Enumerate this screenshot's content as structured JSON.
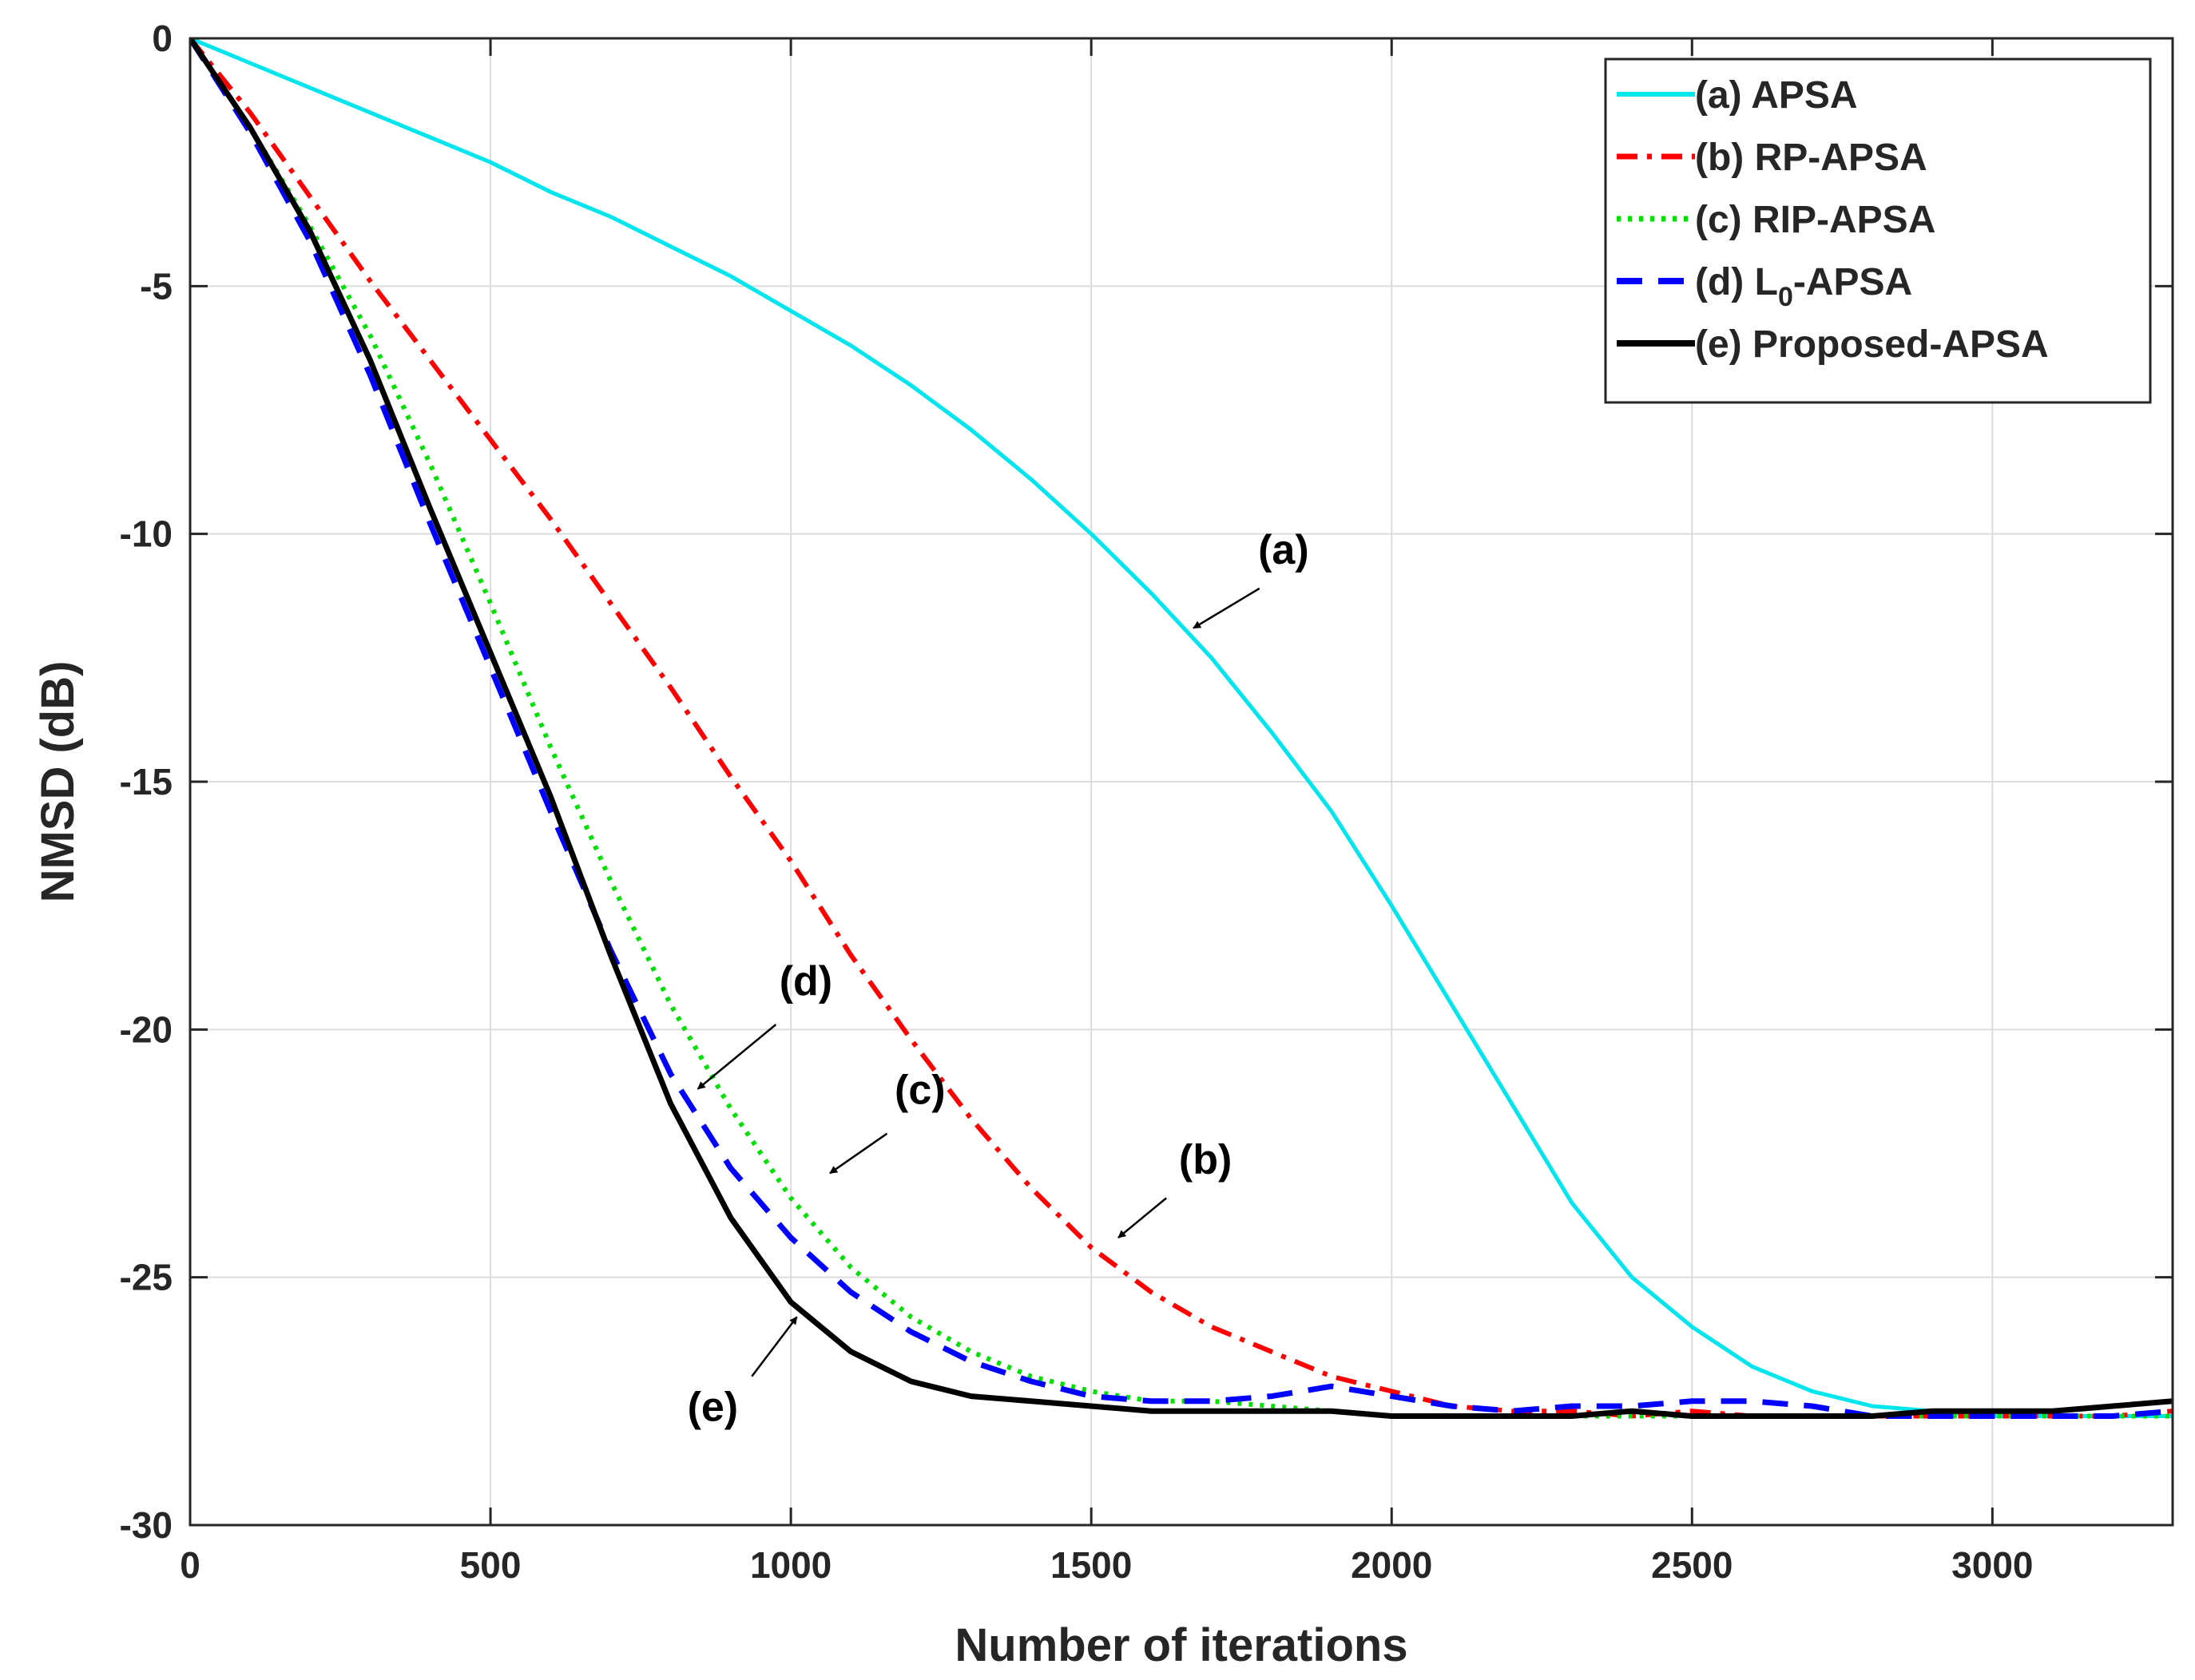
{
  "chart_data": {
    "type": "line",
    "title": "",
    "xlabel": "Number of iterations",
    "ylabel": "NMSD (dB)",
    "xlim": [
      0,
      3300
    ],
    "ylim": [
      -30,
      0
    ],
    "xticks": [
      0,
      500,
      1000,
      1500,
      2000,
      2500,
      3000
    ],
    "xtick_labels": [
      "0",
      "500",
      "1000",
      "1500",
      "2000",
      "2500",
      "3000"
    ],
    "yticks": [
      0,
      -5,
      -10,
      -15,
      -20,
      -25,
      -30
    ],
    "ytick_labels": [
      "0",
      "-5",
      "-10",
      "-15",
      "-20",
      "-25",
      "-30"
    ],
    "grid": true,
    "legend_position": "top-right",
    "series": [
      {
        "name": "(a) APSA",
        "legend_main": "(a) APSA",
        "legend_sub": "",
        "legend_suffix": "",
        "color": "#00E5EE",
        "style": "solid",
        "x": [
          0,
          100,
          200,
          300,
          400,
          500,
          600,
          700,
          800,
          900,
          1000,
          1100,
          1200,
          1300,
          1400,
          1500,
          1600,
          1700,
          1800,
          1900,
          2000,
          2100,
          2200,
          2300,
          2400,
          2500,
          2600,
          2700,
          2800,
          2900,
          3000,
          3100,
          3200,
          3300
        ],
        "y": [
          0,
          -0.5,
          -1.0,
          -1.5,
          -2.0,
          -2.5,
          -3.1,
          -3.6,
          -4.2,
          -4.8,
          -5.5,
          -6.2,
          -7.0,
          -7.9,
          -8.9,
          -10.0,
          -11.2,
          -12.5,
          -14.0,
          -15.6,
          -17.5,
          -19.5,
          -21.5,
          -23.5,
          -25.0,
          -26.0,
          -26.8,
          -27.3,
          -27.6,
          -27.7,
          -27.8,
          -27.8,
          -27.8,
          -27.8
        ]
      },
      {
        "name": "(b) RP-APSA",
        "legend_main": "(b) RP-APSA",
        "legend_sub": "",
        "legend_suffix": "",
        "color": "#FF0000",
        "style": "dashdot",
        "x": [
          0,
          100,
          200,
          300,
          400,
          500,
          600,
          700,
          800,
          900,
          1000,
          1100,
          1200,
          1300,
          1400,
          1500,
          1600,
          1700,
          1800,
          1900,
          2000,
          2100,
          2200,
          2300,
          2400,
          2500,
          2600,
          2700,
          2800,
          2900,
          3000,
          3100,
          3200,
          3300
        ],
        "y": [
          0,
          -1.5,
          -3.2,
          -4.9,
          -6.5,
          -8.1,
          -9.7,
          -11.4,
          -13.1,
          -14.9,
          -16.6,
          -18.5,
          -20.2,
          -21.8,
          -23.2,
          -24.4,
          -25.3,
          -26.0,
          -26.5,
          -27.0,
          -27.3,
          -27.6,
          -27.7,
          -27.7,
          -27.8,
          -27.7,
          -27.8,
          -27.8,
          -27.8,
          -27.8,
          -27.8,
          -27.8,
          -27.8,
          -27.7
        ]
      },
      {
        "name": "(c) RIP-APSA",
        "legend_main": "(c) RIP-APSA",
        "legend_sub": "",
        "legend_suffix": "",
        "color": "#00E000",
        "style": "dotted",
        "x": [
          0,
          100,
          200,
          300,
          400,
          500,
          600,
          700,
          800,
          900,
          1000,
          1100,
          1200,
          1300,
          1400,
          1500,
          1600,
          1700,
          1800,
          1900,
          2000,
          2100,
          2200,
          2300,
          2400,
          2500,
          2600,
          2700,
          2800,
          2900,
          3000,
          3100,
          3200,
          3300
        ],
        "y": [
          0,
          -1.8,
          -3.8,
          -6.0,
          -8.6,
          -11.4,
          -14.3,
          -17.0,
          -19.5,
          -21.6,
          -23.4,
          -24.8,
          -25.8,
          -26.5,
          -27.0,
          -27.3,
          -27.5,
          -27.5,
          -27.6,
          -27.7,
          -27.8,
          -27.8,
          -27.8,
          -27.8,
          -27.8,
          -27.8,
          -27.8,
          -27.8,
          -27.8,
          -27.8,
          -27.8,
          -27.8,
          -27.8,
          -27.8
        ]
      },
      {
        "name": "(d) L0-APSA",
        "legend_main": "(d) L",
        "legend_sub": "0",
        "legend_suffix": "-APSA",
        "color": "#0000FF",
        "style": "dashed",
        "x": [
          0,
          100,
          200,
          300,
          400,
          500,
          600,
          700,
          800,
          900,
          1000,
          1100,
          1200,
          1300,
          1400,
          1500,
          1600,
          1700,
          1800,
          1900,
          2000,
          2100,
          2200,
          2300,
          2400,
          2500,
          2600,
          2700,
          2800,
          2900,
          3000,
          3100,
          3200,
          3300
        ],
        "y": [
          0,
          -1.9,
          -4.1,
          -6.8,
          -9.8,
          -12.7,
          -15.6,
          -18.4,
          -20.9,
          -22.8,
          -24.2,
          -25.3,
          -26.1,
          -26.7,
          -27.1,
          -27.4,
          -27.5,
          -27.5,
          -27.4,
          -27.2,
          -27.4,
          -27.6,
          -27.7,
          -27.6,
          -27.6,
          -27.5,
          -27.5,
          -27.6,
          -27.8,
          -27.8,
          -27.8,
          -27.8,
          -27.8,
          -27.7
        ]
      },
      {
        "name": "(e) Proposed-APSA",
        "legend_main": "(e) Proposed-APSA",
        "legend_sub": "",
        "legend_suffix": "",
        "color": "#000000",
        "style": "solid-thick",
        "x": [
          0,
          100,
          200,
          300,
          400,
          500,
          600,
          700,
          800,
          900,
          1000,
          1100,
          1200,
          1300,
          1400,
          1500,
          1600,
          1700,
          1800,
          1900,
          2000,
          2100,
          2200,
          2300,
          2400,
          2500,
          2600,
          2700,
          2800,
          2900,
          3000,
          3100,
          3200,
          3300
        ],
        "y": [
          0,
          -1.8,
          -3.9,
          -6.5,
          -9.5,
          -12.4,
          -15.3,
          -18.5,
          -21.5,
          -23.8,
          -25.5,
          -26.5,
          -27.1,
          -27.4,
          -27.5,
          -27.6,
          -27.7,
          -27.7,
          -27.7,
          -27.7,
          -27.8,
          -27.8,
          -27.8,
          -27.8,
          -27.7,
          -27.8,
          -27.8,
          -27.8,
          -27.8,
          -27.7,
          -27.7,
          -27.7,
          -27.6,
          -27.5
        ]
      }
    ],
    "annotations": [
      {
        "label": "(a)",
        "text_x": 1820,
        "text_y": -10.6,
        "arrow_from": [
          1780,
          -11.1
        ],
        "arrow_to": [
          1670,
          -11.9
        ]
      },
      {
        "label": "(b)",
        "text_x": 1690,
        "text_y": -22.9,
        "arrow_from": [
          1625,
          -23.4
        ],
        "arrow_to": [
          1545,
          -24.2
        ]
      },
      {
        "label": "(c)",
        "text_x": 1215,
        "text_y": -21.5,
        "arrow_from": [
          1160,
          -22.1
        ],
        "arrow_to": [
          1065,
          -22.9
        ]
      },
      {
        "label": "(d)",
        "text_x": 1025,
        "text_y": -19.3,
        "arrow_from": [
          975,
          -19.9
        ],
        "arrow_to": [
          845,
          -21.2
        ]
      },
      {
        "label": "(e)",
        "text_x": 870,
        "text_y": -27.9,
        "arrow_from": [
          935,
          -27.0
        ],
        "arrow_to": [
          1010,
          -25.8
        ]
      }
    ]
  }
}
